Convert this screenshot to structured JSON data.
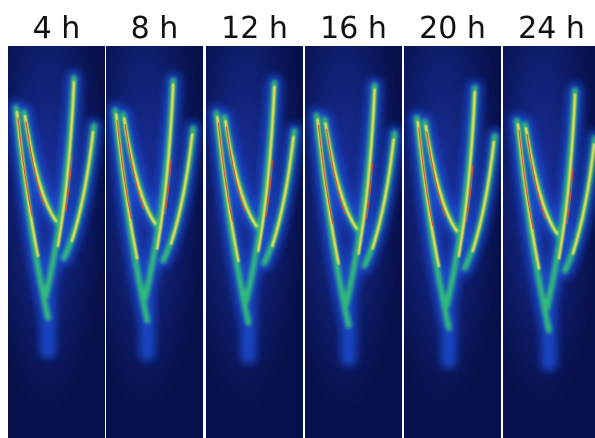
{
  "panels": [
    {
      "label": "4 h"
    },
    {
      "label": "8 h"
    },
    {
      "label": "12 h"
    },
    {
      "label": "16 h"
    },
    {
      "label": "20 h"
    },
    {
      "label": "24 h"
    }
  ]
}
